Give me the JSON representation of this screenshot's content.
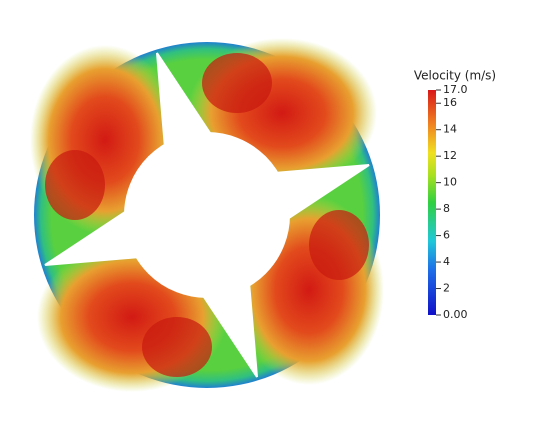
{
  "colorbar": {
    "title": "Velocity (m/s)",
    "range": [
      0,
      17
    ],
    "ticks": [
      {
        "value": 0,
        "label": "0.00"
      },
      2,
      4,
      6,
      8,
      10,
      12,
      14,
      16,
      {
        "value": 17,
        "label": "17.0"
      }
    ]
  }
}
